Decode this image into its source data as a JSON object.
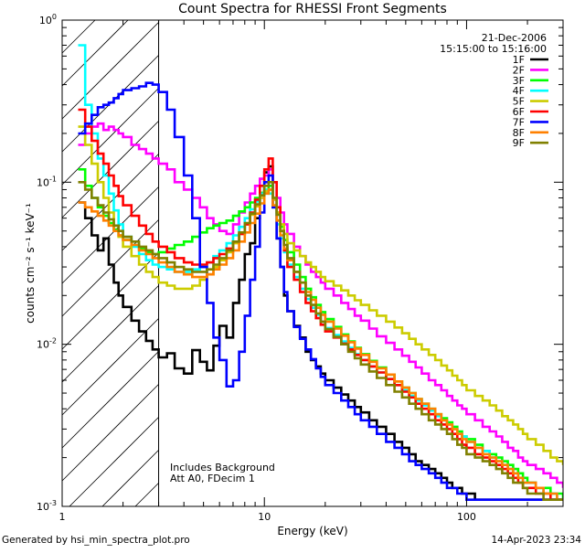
{
  "chart_data": {
    "type": "line",
    "title": "Count Spectra for RHESSI Front Segments",
    "xlabel": "Energy (keV)",
    "ylabel": "counts cm⁻² s⁻¹ keV⁻¹",
    "xscale": "log",
    "yscale": "log",
    "xlim": [
      1.0,
      300.0
    ],
    "ylim": [
      0.001,
      1.0
    ],
    "x_ticks": [
      {
        "value": 1,
        "label": "1"
      },
      {
        "value": 10,
        "label": "10"
      },
      {
        "value": 100,
        "label": "100"
      }
    ],
    "y_ticks": [
      {
        "value": 1,
        "label": "10",
        "exp": "0"
      },
      {
        "value": 0.1,
        "label": "10",
        "exp": "-1"
      },
      {
        "value": 0.01,
        "label": "10",
        "exp": "-2"
      },
      {
        "value": 0.001,
        "label": "10",
        "exp": "-3"
      }
    ],
    "hatched_region": {
      "from": 1.0,
      "to": 3.0
    },
    "header_date": "21-Dec-2006",
    "header_time": "15:15:00 to 15:16:00",
    "annotations": [
      "Includes Background",
      "Att A0, FDecim 1"
    ],
    "footer_left": "Generated by hsi_min_spectra_plot.pro",
    "footer_right": "14-Apr-2023 23:34",
    "bins": [
      1.2,
      1.3,
      1.4,
      1.5,
      1.6,
      1.7,
      1.8,
      1.9,
      2.0,
      2.2,
      2.4,
      2.6,
      2.8,
      3.0,
      3.3,
      3.6,
      4.0,
      4.4,
      4.8,
      5.2,
      5.6,
      6.0,
      6.5,
      7.0,
      7.5,
      8.0,
      8.5,
      9.0,
      9.5,
      10.0,
      10.5,
      11.0,
      11.5,
      12.0,
      12.5,
      13.0,
      14.0,
      15.0,
      16.0,
      17.0,
      18.0,
      19.0,
      20.0,
      22.0,
      24.0,
      26.0,
      28.0,
      30.0,
      33.0,
      36.0,
      40.0,
      44.0,
      48.0,
      52.0,
      56.0,
      60.0,
      65.0,
      70.0,
      75.0,
      80.0,
      85.0,
      90.0,
      95.0,
      100.0,
      110.0,
      120.0,
      130.0,
      140.0,
      150.0,
      160.0,
      170.0,
      180.0,
      190.0,
      200.0,
      220.0,
      240.0,
      260.0,
      280.0,
      300.0
    ],
    "series": [
      {
        "name": "1F",
        "color": "#000000",
        "values": [
          0.075,
          0.06,
          0.047,
          0.038,
          0.045,
          0.031,
          0.024,
          0.02,
          0.017,
          0.014,
          0.012,
          0.0105,
          0.0093,
          0.0083,
          0.0088,
          0.0071,
          0.0066,
          0.0092,
          0.0078,
          0.0069,
          0.0098,
          0.013,
          0.011,
          0.018,
          0.025,
          0.036,
          0.042,
          0.06,
          0.085,
          0.115,
          0.125,
          0.07,
          0.045,
          0.03,
          0.02,
          0.016,
          0.013,
          0.011,
          0.009,
          0.008,
          0.0073,
          0.0066,
          0.006,
          0.0054,
          0.0049,
          0.0045,
          0.0041,
          0.0038,
          0.0034,
          0.0031,
          0.0028,
          0.0025,
          0.0023,
          0.0021,
          0.0019,
          0.0018,
          0.0017,
          0.0016,
          0.0015,
          0.0014,
          0.0013,
          0.0013,
          0.0012,
          0.0012,
          0.0011,
          0.0011,
          0.0011,
          0.0011,
          0.0011,
          0.0011,
          0.0011,
          0.0011,
          0.0011,
          0.0011,
          0.0011,
          0.0011,
          0.0011,
          0.0011,
          0.0011
        ]
      },
      {
        "name": "2F",
        "color": "#ff00ff",
        "values": [
          0.17,
          0.2,
          0.22,
          0.23,
          0.21,
          0.22,
          0.21,
          0.2,
          0.19,
          0.17,
          0.16,
          0.15,
          0.14,
          0.13,
          0.12,
          0.1,
          0.09,
          0.08,
          0.07,
          0.06,
          0.055,
          0.05,
          0.048,
          0.055,
          0.065,
          0.075,
          0.085,
          0.095,
          0.105,
          0.11,
          0.12,
          0.1,
          0.08,
          0.065,
          0.055,
          0.048,
          0.04,
          0.035,
          0.031,
          0.028,
          0.026,
          0.024,
          0.022,
          0.02,
          0.018,
          0.0165,
          0.015,
          0.014,
          0.0125,
          0.0112,
          0.0102,
          0.0093,
          0.0085,
          0.0078,
          0.0072,
          0.0066,
          0.006,
          0.0056,
          0.0052,
          0.0048,
          0.0045,
          0.0042,
          0.004,
          0.0037,
          0.0034,
          0.0031,
          0.0029,
          0.0027,
          0.0025,
          0.0023,
          0.0022,
          0.002,
          0.0019,
          0.0018,
          0.0017,
          0.0016,
          0.0015,
          0.0014,
          0.0013
        ]
      },
      {
        "name": "3F",
        "color": "#00ff00",
        "values": [
          0.12,
          0.095,
          0.08,
          0.07,
          0.062,
          0.056,
          0.051,
          0.047,
          0.044,
          0.041,
          0.039,
          0.037,
          0.036,
          0.037,
          0.039,
          0.041,
          0.043,
          0.046,
          0.049,
          0.052,
          0.054,
          0.056,
          0.058,
          0.062,
          0.066,
          0.07,
          0.075,
          0.08,
          0.086,
          0.09,
          0.095,
          0.08,
          0.065,
          0.053,
          0.044,
          0.037,
          0.031,
          0.026,
          0.022,
          0.0195,
          0.0175,
          0.0158,
          0.0143,
          0.0128,
          0.0115,
          0.0104,
          0.0095,
          0.0087,
          0.0079,
          0.0072,
          0.0065,
          0.0059,
          0.0054,
          0.005,
          0.0046,
          0.0043,
          0.004,
          0.0037,
          0.0035,
          0.0033,
          0.0031,
          0.0029,
          0.0027,
          0.0026,
          0.0024,
          0.0022,
          0.0021,
          0.002,
          0.0019,
          0.0018,
          0.0017,
          0.0016,
          0.0015,
          0.0014,
          0.0013,
          0.0013,
          0.0012,
          0.0012,
          0.0011
        ]
      },
      {
        "name": "4F",
        "color": "#00ffff",
        "values": [
          0.7,
          0.3,
          0.2,
          0.14,
          0.11,
          0.085,
          0.067,
          0.055,
          0.046,
          0.04,
          0.036,
          0.033,
          0.031,
          0.03,
          0.029,
          0.028,
          0.028,
          0.029,
          0.03,
          0.032,
          0.035,
          0.038,
          0.042,
          0.047,
          0.053,
          0.06,
          0.068,
          0.076,
          0.085,
          0.09,
          0.085,
          0.07,
          0.055,
          0.045,
          0.037,
          0.031,
          0.026,
          0.022,
          0.019,
          0.0168,
          0.0152,
          0.0138,
          0.0126,
          0.0114,
          0.0104,
          0.0095,
          0.0087,
          0.008,
          0.0073,
          0.0067,
          0.0061,
          0.0056,
          0.0052,
          0.0048,
          0.0045,
          0.0042,
          0.0039,
          0.0036,
          0.0034,
          0.0032,
          0.003,
          0.0028,
          0.0027,
          0.0025,
          0.0023,
          0.0022,
          0.002,
          0.0019,
          0.0018,
          0.0017,
          0.0016,
          0.0015,
          0.0014,
          0.0014,
          0.0013,
          0.0012,
          0.0012,
          0.0011,
          0.0011
        ]
      },
      {
        "name": "5F",
        "color": "#cccc00",
        "values": [
          0.22,
          0.17,
          0.13,
          0.1,
          0.08,
          0.065,
          0.054,
          0.046,
          0.04,
          0.035,
          0.031,
          0.028,
          0.026,
          0.024,
          0.023,
          0.022,
          0.022,
          0.023,
          0.025,
          0.027,
          0.03,
          0.033,
          0.037,
          0.042,
          0.048,
          0.055,
          0.063,
          0.071,
          0.08,
          0.088,
          0.09,
          0.078,
          0.065,
          0.055,
          0.048,
          0.042,
          0.038,
          0.035,
          0.032,
          0.03,
          0.028,
          0.026,
          0.0245,
          0.023,
          0.0215,
          0.02,
          0.0187,
          0.0175,
          0.0162,
          0.015,
          0.0138,
          0.0127,
          0.0117,
          0.0108,
          0.01,
          0.0093,
          0.0086,
          0.008,
          0.0074,
          0.0069,
          0.0064,
          0.006,
          0.0056,
          0.0052,
          0.0048,
          0.0045,
          0.0042,
          0.0039,
          0.0036,
          0.0034,
          0.0032,
          0.003,
          0.0028,
          0.0026,
          0.0024,
          0.0022,
          0.002,
          0.0019,
          0.0018
        ]
      },
      {
        "name": "6F",
        "color": "#ff0000",
        "values": [
          0.28,
          0.22,
          0.18,
          0.15,
          0.13,
          0.11,
          0.095,
          0.082,
          0.072,
          0.062,
          0.054,
          0.048,
          0.043,
          0.04,
          0.037,
          0.034,
          0.032,
          0.031,
          0.031,
          0.032,
          0.034,
          0.036,
          0.039,
          0.043,
          0.048,
          0.055,
          0.065,
          0.078,
          0.095,
          0.12,
          0.14,
          0.1,
          0.07,
          0.05,
          0.038,
          0.03,
          0.025,
          0.021,
          0.018,
          0.016,
          0.0145,
          0.0132,
          0.012,
          0.011,
          0.0101,
          0.0093,
          0.0086,
          0.008,
          0.0073,
          0.0067,
          0.0061,
          0.0056,
          0.0051,
          0.0047,
          0.0043,
          0.004,
          0.0037,
          0.0034,
          0.0032,
          0.003,
          0.0028,
          0.0026,
          0.0024,
          0.0023,
          0.0021,
          0.002,
          0.0019,
          0.0018,
          0.0017,
          0.0016,
          0.0015,
          0.0014,
          0.0013,
          0.0013,
          0.0012,
          0.0012,
          0.0011,
          0.0011,
          0.0011
        ]
      },
      {
        "name": "7F",
        "color": "#0000ff",
        "values": [
          0.2,
          0.23,
          0.26,
          0.29,
          0.3,
          0.31,
          0.33,
          0.35,
          0.37,
          0.38,
          0.39,
          0.41,
          0.4,
          0.36,
          0.28,
          0.19,
          0.11,
          0.06,
          0.03,
          0.018,
          0.011,
          0.008,
          0.0055,
          0.006,
          0.009,
          0.015,
          0.025,
          0.04,
          0.065,
          0.1,
          0.11,
          0.07,
          0.045,
          0.03,
          0.021,
          0.016,
          0.0128,
          0.0108,
          0.0093,
          0.0081,
          0.0071,
          0.0063,
          0.0056,
          0.005,
          0.0045,
          0.0041,
          0.0037,
          0.0034,
          0.0031,
          0.0028,
          0.0025,
          0.0023,
          0.0021,
          0.0019,
          0.0018,
          0.0017,
          0.0016,
          0.0015,
          0.0014,
          0.0013,
          0.0013,
          0.0012,
          0.0012,
          0.0011,
          0.0011,
          0.0011,
          0.0011,
          0.0011,
          0.0011,
          0.0011,
          0.0011,
          0.0011,
          0.0011,
          0.0011,
          0.0011,
          0.0011,
          0.0011,
          0.0011,
          0.0011
        ]
      },
      {
        "name": "8F",
        "color": "#ff8000",
        "values": [
          0.075,
          0.07,
          0.066,
          0.062,
          0.058,
          0.054,
          0.05,
          0.047,
          0.044,
          0.041,
          0.038,
          0.036,
          0.034,
          0.032,
          0.03,
          0.028,
          0.027,
          0.026,
          0.026,
          0.027,
          0.029,
          0.031,
          0.034,
          0.038,
          0.043,
          0.049,
          0.056,
          0.064,
          0.074,
          0.085,
          0.09,
          0.072,
          0.058,
          0.047,
          0.039,
          0.033,
          0.028,
          0.024,
          0.021,
          0.0188,
          0.0168,
          0.0152,
          0.0138,
          0.0125,
          0.0113,
          0.0103,
          0.0094,
          0.0086,
          0.0078,
          0.0071,
          0.0065,
          0.0059,
          0.0054,
          0.005,
          0.0046,
          0.0043,
          0.004,
          0.0037,
          0.0034,
          0.0032,
          0.003,
          0.0028,
          0.0026,
          0.0025,
          0.0023,
          0.0021,
          0.002,
          0.0019,
          0.0018,
          0.0017,
          0.0016,
          0.0015,
          0.0014,
          0.0014,
          0.0013,
          0.0012,
          0.0012,
          0.0011,
          0.0011
        ]
      },
      {
        "name": "9F",
        "color": "#808000",
        "values": [
          0.1,
          0.09,
          0.08,
          0.072,
          0.065,
          0.059,
          0.054,
          0.05,
          0.046,
          0.043,
          0.04,
          0.038,
          0.036,
          0.034,
          0.032,
          0.03,
          0.029,
          0.028,
          0.028,
          0.029,
          0.031,
          0.034,
          0.038,
          0.043,
          0.049,
          0.056,
          0.064,
          0.073,
          0.083,
          0.095,
          0.1,
          0.08,
          0.063,
          0.05,
          0.041,
          0.034,
          0.028,
          0.024,
          0.02,
          0.0175,
          0.0155,
          0.0138,
          0.0124,
          0.0111,
          0.01,
          0.009,
          0.0082,
          0.0075,
          0.0068,
          0.0062,
          0.0056,
          0.0051,
          0.0047,
          0.0043,
          0.004,
          0.0037,
          0.0034,
          0.0032,
          0.003,
          0.0028,
          0.0026,
          0.0024,
          0.0023,
          0.0021,
          0.002,
          0.0019,
          0.0018,
          0.0017,
          0.0016,
          0.0015,
          0.0014,
          0.0014,
          0.0013,
          0.0012,
          0.0012,
          0.0011,
          0.0011,
          0.0011,
          0.0011
        ]
      }
    ]
  }
}
